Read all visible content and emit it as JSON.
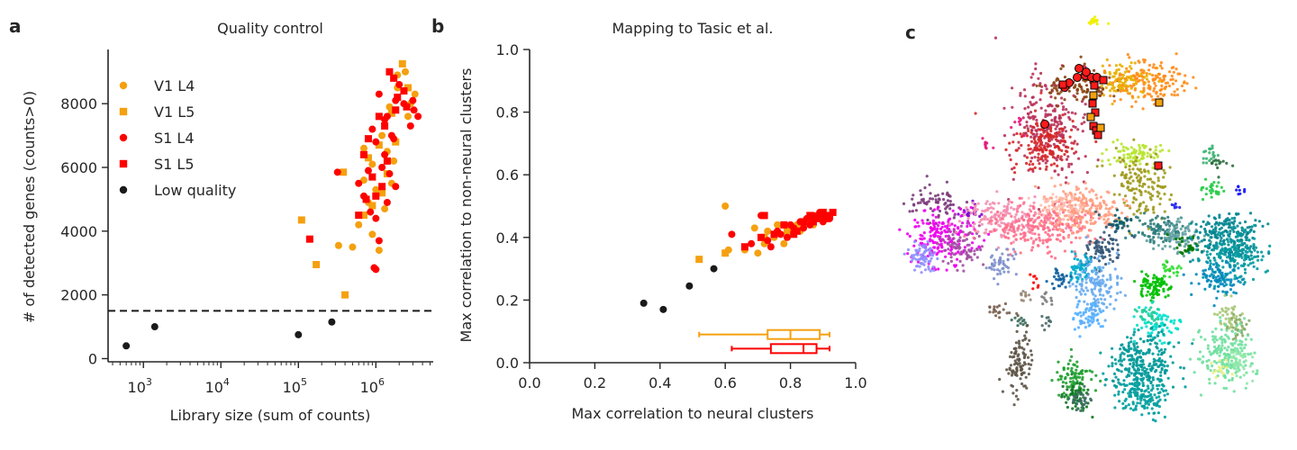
{
  "colors": {
    "v1": "#f5a00f",
    "s1": "#ff0000",
    "low": "#1a1a1a",
    "axis": "#262626"
  },
  "panels": {
    "a": {
      "letter": "a",
      "title": "Quality control",
      "xlabel": "Library size (sum of counts)",
      "ylabel": "# of detected genes (counts>0)"
    },
    "b": {
      "letter": "b",
      "title": "Mapping to Tasic et al.",
      "xlabel": "Max correlation to neural clusters",
      "ylabel": "Max correlation to non-neural clusters"
    },
    "c": {
      "letter": "c"
    }
  },
  "legend": [
    {
      "label": "V1 L4",
      "marker": "circle",
      "color": "#f5a00f"
    },
    {
      "label": "V1 L5",
      "marker": "square",
      "color": "#f5a00f"
    },
    {
      "label": "S1 L4",
      "marker": "circle",
      "color": "#ff0000"
    },
    {
      "label": "S1 L5",
      "marker": "square",
      "color": "#ff0000"
    },
    {
      "label": "Low quality",
      "marker": "circle",
      "color": "#1a1a1a"
    }
  ],
  "chart_data": [
    {
      "id": "quality-control",
      "type": "scatter",
      "title": "Quality control",
      "xlabel": "Library size (sum of counts)",
      "ylabel": "# of detected genes (counts>0)",
      "xscale": "log",
      "xlim": [
        350,
        5500000
      ],
      "ylim": [
        -100,
        9700
      ],
      "xtick_exponents": [
        3,
        4,
        5,
        6
      ],
      "yticks": [
        0,
        2000,
        4000,
        6000,
        8000
      ],
      "threshold_line": 1500,
      "legend_position": "upper-left",
      "series": [
        {
          "name": "V1 L4",
          "marker": "circle",
          "points": [
            [
              2400000,
              9000
            ],
            [
              3200000,
              8300
            ],
            [
              2600000,
              7600
            ],
            [
              1900000,
              8500
            ],
            [
              1500000,
              7900
            ],
            [
              1200000,
              7000
            ],
            [
              900000,
              6100
            ],
            [
              700000,
              5600
            ],
            [
              1000000,
              5300
            ],
            [
              800000,
              4900
            ],
            [
              1300000,
              4700
            ],
            [
              600000,
              4200
            ],
            [
              900000,
              3900
            ],
            [
              1100000,
              3400
            ],
            [
              500000,
              3500
            ],
            [
              330000,
              3550
            ],
            [
              1700000,
              6200
            ],
            [
              1600000,
              5500
            ],
            [
              700000,
              6600
            ],
            [
              2800000,
              8000
            ],
            [
              1900000,
              8900
            ],
            [
              1400000,
              6500
            ]
          ]
        },
        {
          "name": "V1 L5",
          "marker": "square",
          "points": [
            [
              2200000,
              9250
            ],
            [
              1800000,
              6800
            ],
            [
              1400000,
              5800
            ],
            [
              1200000,
              5200
            ],
            [
              900000,
              4800
            ],
            [
              700000,
              4500
            ],
            [
              1100000,
              6700
            ],
            [
              1600000,
              7700
            ],
            [
              110000,
              4350
            ],
            [
              170000,
              2950
            ],
            [
              400000,
              2000
            ],
            [
              380000,
              5850
            ],
            [
              2600000,
              8500
            ],
            [
              800000,
              6300
            ]
          ]
        },
        {
          "name": "S1 L4",
          "marker": "circle",
          "points": [
            [
              1100000,
              8300
            ],
            [
              1400000,
              7600
            ],
            [
              1800000,
              8100
            ],
            [
              2300000,
              8000
            ],
            [
              3500000,
              7600
            ],
            [
              3100000,
              7800
            ],
            [
              900000,
              7200
            ],
            [
              1000000,
              6800
            ],
            [
              1300000,
              6400
            ],
            [
              800000,
              5900
            ],
            [
              600000,
              5500
            ],
            [
              1200000,
              6000
            ],
            [
              1500000,
              5800
            ],
            [
              700000,
              5100
            ],
            [
              1800000,
              5400
            ],
            [
              1400000,
              4900
            ],
            [
              1000000,
              4400
            ],
            [
              1100000,
              3700
            ],
            [
              950000,
              2850
            ],
            [
              1000000,
              2800
            ],
            [
              850000,
              4600
            ],
            [
              2000000,
              8600
            ],
            [
              1600000,
              7000
            ],
            [
              2800000,
              7300
            ],
            [
              3000000,
              8100
            ],
            [
              1300000,
              7500
            ],
            [
              1700000,
              6900
            ],
            [
              320000,
              5850
            ]
          ]
        },
        {
          "name": "S1 L5",
          "marker": "square",
          "points": [
            [
              1500000,
              9000
            ],
            [
              1700000,
              8800
            ],
            [
              2300000,
              8400
            ],
            [
              1900000,
              8200
            ],
            [
              1100000,
              7600
            ],
            [
              1300000,
              7300
            ],
            [
              800000,
              6900
            ],
            [
              700000,
              6400
            ],
            [
              1400000,
              6200
            ],
            [
              900000,
              5700
            ],
            [
              1200000,
              5400
            ],
            [
              1000000,
              5100
            ],
            [
              750000,
              5000
            ],
            [
              600000,
              4500
            ],
            [
              140000,
              3750
            ],
            [
              1800000,
              7800
            ],
            [
              2500000,
              7900
            ]
          ]
        },
        {
          "name": "Low quality",
          "marker": "circle",
          "points": [
            [
              600,
              400
            ],
            [
              1400,
              1000
            ],
            [
              100000,
              750
            ],
            [
              270000,
              1150
            ]
          ]
        }
      ]
    },
    {
      "id": "tasic-mapping",
      "type": "scatter",
      "title": "Mapping to Tasic et al.",
      "xlabel": "Max correlation to neural clusters",
      "ylabel": "Max correlation to non-neural clusters",
      "xlim": [
        0.0,
        1.0
      ],
      "ylim": [
        0.0,
        1.0
      ],
      "xticks": [
        0.0,
        0.2,
        0.4,
        0.6,
        0.8,
        1.0
      ],
      "yticks": [
        0.0,
        0.2,
        0.4,
        0.6,
        0.8,
        1.0
      ],
      "series": [
        {
          "name": "V1 L4",
          "marker": "circle",
          "points": [
            [
              0.6,
              0.5
            ],
            [
              0.66,
              0.36
            ],
            [
              0.7,
              0.35
            ],
            [
              0.72,
              0.38
            ],
            [
              0.75,
              0.4
            ],
            [
              0.78,
              0.38
            ],
            [
              0.8,
              0.41
            ],
            [
              0.83,
              0.42
            ],
            [
              0.85,
              0.45
            ],
            [
              0.87,
              0.44
            ],
            [
              0.88,
              0.47
            ],
            [
              0.9,
              0.46
            ],
            [
              0.73,
              0.42
            ],
            [
              0.76,
              0.44
            ],
            [
              0.82,
              0.44
            ],
            [
              0.69,
              0.43
            ],
            [
              0.61,
              0.36
            ]
          ]
        },
        {
          "name": "V1 L5",
          "marker": "square",
          "points": [
            [
              0.52,
              0.33
            ],
            [
              0.6,
              0.35
            ],
            [
              0.72,
              0.4
            ],
            [
              0.79,
              0.42
            ],
            [
              0.86,
              0.46
            ],
            [
              0.9,
              0.48
            ],
            [
              0.92,
              0.47
            ]
          ]
        },
        {
          "name": "S1 L4",
          "marker": "circle",
          "points": [
            [
              0.62,
              0.41
            ],
            [
              0.68,
              0.38
            ],
            [
              0.71,
              0.47
            ],
            [
              0.74,
              0.37
            ],
            [
              0.77,
              0.41
            ],
            [
              0.79,
              0.4
            ],
            [
              0.81,
              0.43
            ],
            [
              0.83,
              0.45
            ],
            [
              0.84,
              0.43
            ],
            [
              0.85,
              0.46
            ],
            [
              0.86,
              0.44
            ],
            [
              0.87,
              0.47
            ],
            [
              0.88,
              0.46
            ],
            [
              0.89,
              0.48
            ],
            [
              0.9,
              0.45
            ],
            [
              0.91,
              0.47
            ],
            [
              0.92,
              0.46
            ],
            [
              0.73,
              0.39
            ],
            [
              0.76,
              0.42
            ],
            [
              0.8,
              0.44
            ]
          ]
        },
        {
          "name": "S1 L5",
          "marker": "square",
          "points": [
            [
              0.66,
              0.37
            ],
            [
              0.72,
              0.47
            ],
            [
              0.75,
              0.41
            ],
            [
              0.78,
              0.44
            ],
            [
              0.82,
              0.42
            ],
            [
              0.84,
              0.45
            ],
            [
              0.86,
              0.47
            ],
            [
              0.87,
              0.45
            ],
            [
              0.88,
              0.46
            ],
            [
              0.89,
              0.47
            ],
            [
              0.9,
              0.48
            ],
            [
              0.91,
              0.46
            ],
            [
              0.92,
              0.47
            ],
            [
              0.93,
              0.48
            ],
            [
              0.81,
              0.41
            ],
            [
              0.71,
              0.4
            ]
          ]
        },
        {
          "name": "Low quality",
          "marker": "circle",
          "points": [
            [
              0.35,
              0.19
            ],
            [
              0.41,
              0.17
            ],
            [
              0.49,
              0.245
            ],
            [
              0.565,
              0.3
            ]
          ]
        }
      ],
      "boxplots": [
        {
          "name": "V1",
          "color": "#f5a00f",
          "whisker_low": 0.52,
          "q1": 0.73,
          "median": 0.8,
          "q3": 0.89,
          "whisker_high": 0.92,
          "y": 0.09
        },
        {
          "name": "S1",
          "color": "#ff0000",
          "whisker_low": 0.62,
          "q1": 0.74,
          "median": 0.84,
          "q3": 0.88,
          "whisker_high": 0.92,
          "y": 0.045
        }
      ]
    }
  ]
}
